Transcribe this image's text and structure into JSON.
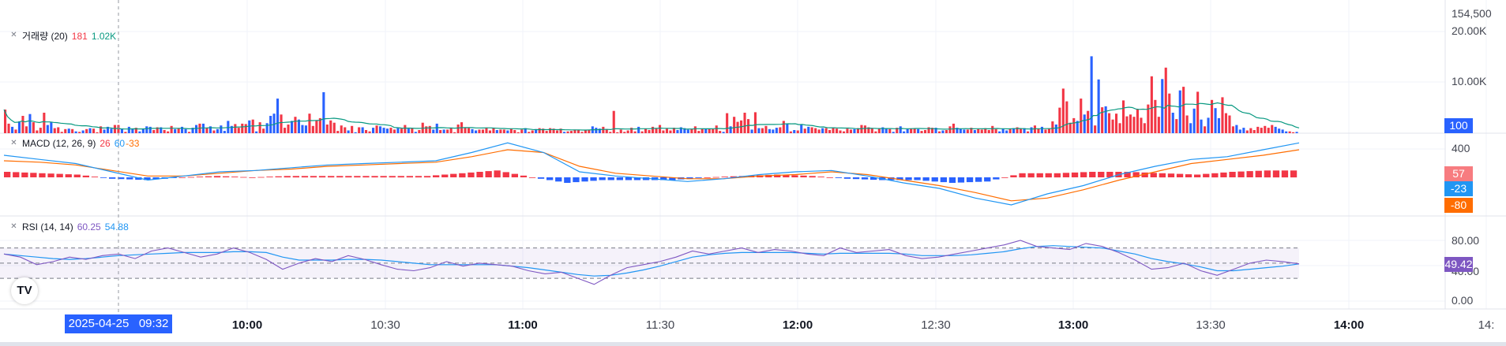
{
  "chart_data": [
    {
      "type": "bar",
      "legend": {
        "name": "거래량 (20)",
        "value1": "181",
        "value2": "1.02K"
      },
      "ylim": [
        0,
        23000
      ],
      "ticks": [
        "20.00K",
        "10.00K"
      ],
      "last_value_badge": "100",
      "top_scale_label": "154,500",
      "volume": [
        5200,
        2100,
        1400,
        800,
        2600,
        3800,
        1500,
        4200,
        2400,
        600,
        1200,
        4500,
        1800,
        2500,
        1100,
        1300,
        300,
        900,
        1000,
        900,
        400,
        300,
        600,
        900,
        1100,
        1000,
        200,
        1500,
        800,
        1400,
        1000,
        1800,
        1800,
        900,
        300,
        1400,
        900,
        1200,
        400,
        900,
        1500,
        1400,
        700,
        1300,
        1300,
        700,
        400,
        1600,
        900,
        1000,
        1400,
        900,
        300,
        1200,
        1800,
        2100,
        2100,
        1200,
        1500,
        600,
        900,
        1700,
        500,
        2700,
        1600,
        2000,
        1200,
        2100,
        2000,
        2800,
        3000,
        400,
        2400,
        1000,
        2200,
        3800,
        4300,
        7600,
        4100,
        1200,
        1900,
        2700,
        3600,
        3000,
        1800,
        1700,
        4300,
        1600,
        2800,
        3300,
        9000,
        1900,
        2800,
        2300,
        500,
        1700,
        1300,
        600,
        1600,
        200,
        1300,
        1300,
        700,
        400,
        1200,
        1700,
        1500,
        1200,
        1000,
        1200,
        800,
        1100,
        1000,
        1800,
        1000,
        1100,
        300,
        700,
        2300,
        1500,
        1600,
        800,
        2100,
        700,
        800,
        800,
        1200,
        200,
        1900,
        2400,
        1300,
        1100,
        900,
        600,
        800,
        800,
        1200,
        600,
        1200,
        700,
        800,
        800,
        600,
        1000,
        700,
        200,
        800,
        1100,
        300,
        600,
        900,
        1100,
        1000,
        500,
        1100,
        1000,
        600,
        1000,
        300,
        400,
        500,
        800,
        700,
        300,
        700,
        700,
        1500,
        1200,
        1000,
        1400,
        900,
        300,
        4900,
        200,
        800,
        300,
        600,
        1200,
        400,
        1400,
        400,
        1000,
        700,
        1400,
        1100,
        1800,
        600,
        1000,
        600,
        1200,
        700,
        1300,
        1100,
        800,
        900,
        1500,
        500,
        1000,
        900,
        900,
        900,
        1700,
        500,
        300,
        4400,
        1500,
        3600,
        2500,
        2800,
        4500,
        3100,
        800,
        4600,
        1100,
        1100,
        1600,
        900,
        800,
        1200,
        1300,
        2700,
        2100,
        400,
        700,
        600,
        1900,
        1000,
        1400,
        1300,
        1100,
        800,
        1100,
        1100,
        700,
        1200,
        1000,
        600,
        400,
        1000,
        800,
        900,
        1100,
        1800,
        1700,
        1300,
        1100,
        400,
        1100,
        1300,
        1000,
        900,
        300,
        1200,
        1500,
        400,
        900,
        1000,
        1000,
        900,
        500,
        700,
        1300,
        1200,
        1200,
        400,
        600,
        700,
        1500,
        2100,
        1200,
        1000,
        800,
        800,
        1200,
        700,
        900,
        800,
        1100,
        700,
        1600,
        900,
        400,
        1000,
        600,
        1000,
        1100,
        1300,
        1000,
        1100,
        400,
        1300,
        1700,
        1000,
        1400,
        800,
        1000,
        2600,
        1900,
        5600,
        9800,
        7000,
        2300,
        3300,
        2700,
        7600,
        4100,
        4900,
        16900,
        1700,
        11800,
        5700,
        5900,
        4400,
        3000,
        4300,
        2200,
        7200,
        3700,
        4100,
        3600,
        5200,
        3400,
        2200,
        6300,
        12500,
        7300,
        3600,
        11900,
        14400,
        8700,
        4500,
        3100,
        9400,
        10200,
        3900,
        2200,
        5400,
        9100,
        3000,
        1500,
        3400,
        7300,
        5500,
        3300,
        7900,
        4400,
        3900,
        1500,
        1800,
        800,
        1200,
        600,
        1100,
        700,
        1400,
        1200,
        1600,
        1200,
        1800,
        1400,
        1000,
        800,
        400,
        400,
        200,
        300
      ]
    },
    {
      "type": "line",
      "legend": {
        "name": "MACD (12, 26, 9)",
        "value1": "26",
        "value2": "60",
        "value3": "-33"
      },
      "ticks": [
        "400"
      ],
      "badges": [
        "57",
        "-23",
        "-80"
      ],
      "ylim": [
        -400,
        480
      ],
      "x": [
        0,
        10,
        20,
        30,
        40,
        50,
        60,
        70,
        80,
        90,
        100,
        110,
        120,
        130,
        140,
        150,
        160,
        170,
        180,
        190,
        200,
        210,
        220,
        230,
        240,
        250,
        260,
        270,
        280,
        290,
        300,
        310,
        320,
        330,
        340,
        350,
        360
      ],
      "series": [
        {
          "values": [
            160,
            130,
            100,
            40,
            -20,
            10,
            40,
            50,
            70,
            90,
            100,
            110,
            120,
            180,
            250,
            180,
            40,
            10,
            -10,
            -30,
            -10,
            20,
            40,
            50,
            10,
            -40,
            -80,
            -150,
            -200,
            -120,
            -60,
            20,
            80,
            130,
            150,
            200,
            250
          ]
        },
        {
          "values": [
            120,
            110,
            90,
            50,
            10,
            10,
            30,
            50,
            60,
            80,
            90,
            100,
            110,
            150,
            200,
            180,
            80,
            30,
            10,
            -10,
            -10,
            10,
            20,
            40,
            20,
            -20,
            -60,
            -110,
            -170,
            -150,
            -90,
            -20,
            40,
            100,
            130,
            160,
            200
          ]
        }
      ],
      "histogram": [
        40,
        30,
        20,
        -10,
        -20,
        0,
        10,
        0,
        10,
        10,
        10,
        10,
        10,
        30,
        50,
        0,
        -40,
        -20,
        -20,
        -20,
        0,
        10,
        20,
        10,
        -10,
        -20,
        -20,
        -40,
        -30,
        30,
        30,
        40,
        40,
        30,
        20,
        40,
        50
      ]
    },
    {
      "type": "line",
      "legend": {
        "name": "RSI (14, 14)",
        "value1": "60.25",
        "value2": "54.88"
      },
      "ticks": [
        "80.00",
        "40.00",
        "0.00"
      ],
      "badge": "49.42",
      "ylim": [
        0,
        100
      ],
      "bands": [
        70,
        50,
        30
      ],
      "series": [
        {
          "values": [
            62,
            58,
            48,
            52,
            58,
            55,
            60,
            62,
            56,
            66,
            70,
            64,
            58,
            62,
            70,
            64,
            55,
            42,
            50,
            56,
            52,
            60,
            55,
            48,
            42,
            40,
            44,
            52,
            46,
            50,
            48,
            46,
            40,
            36,
            38,
            30,
            22,
            34,
            44,
            48,
            52,
            58,
            66,
            62,
            66,
            70,
            64,
            68,
            66,
            62,
            60,
            70,
            64,
            66,
            68,
            60,
            56,
            58,
            62,
            66,
            70,
            74,
            80,
            72,
            70,
            68,
            76,
            72,
            64,
            54,
            42,
            44,
            50,
            40,
            34,
            42,
            50,
            54,
            52,
            49
          ]
        },
        {
          "values": [
            62,
            60,
            58,
            56,
            55,
            56,
            58,
            60,
            61,
            62,
            63,
            64,
            64,
            64,
            65,
            65,
            64,
            58,
            54,
            54,
            54,
            55,
            55,
            54,
            52,
            50,
            48,
            48,
            48,
            48,
            48,
            46,
            44,
            41,
            38,
            35,
            33,
            34,
            37,
            41,
            46,
            52,
            58,
            61,
            63,
            64,
            64,
            64,
            64,
            63,
            62,
            63,
            63,
            63,
            63,
            62,
            60,
            60,
            60,
            61,
            63,
            65,
            69,
            72,
            73,
            72,
            71,
            70,
            66,
            62,
            56,
            52,
            49,
            45,
            40,
            40,
            42,
            44,
            46,
            49
          ]
        }
      ]
    }
  ],
  "x_axis": {
    "labels": [
      "10:00",
      "10:30",
      "11:00",
      "11:30",
      "12:00",
      "12:30",
      "13:00",
      "13:30",
      "14:00",
      "14:"
    ],
    "major": [
      true,
      false,
      true,
      false,
      true,
      false,
      true,
      false,
      true,
      false
    ],
    "crosshair_label": "2025-04-25   09:32"
  },
  "logo_text": "TV",
  "colors": {
    "up": "#f23645",
    "down": "#2962ff",
    "ma": "#089981",
    "macd": "#2196f3",
    "signal": "#ff6d00",
    "rsi": "#7e57c2",
    "rsi_ma": "#2196f3"
  }
}
